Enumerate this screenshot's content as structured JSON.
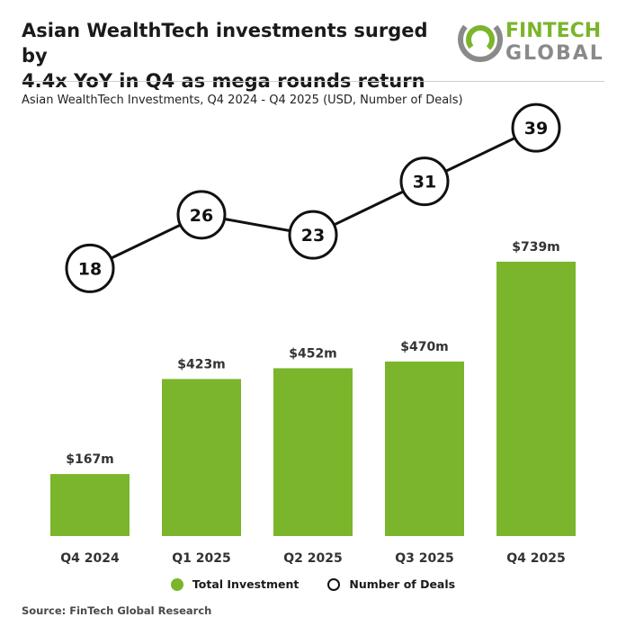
{
  "header": {
    "title_line1": "Asian WealthTech investments surged by",
    "title_line2": "4.4x YoY in Q4 as mega rounds return",
    "logo_line1": "FINTECH",
    "logo_line2": "GLOBAL"
  },
  "subtitle": "Asian WealthTech Investments, Q4 2024 - Q4 2025 (USD, Number of Deals)",
  "legend": {
    "investment": "Total Investment",
    "deals": "Number of Deals"
  },
  "source": "Source: FinTech Global Research",
  "colors": {
    "bar": "#7bb52c",
    "logo_green": "#7bb52c",
    "logo_grey": "#8a8a8a",
    "line": "#111111"
  },
  "chart_data": {
    "type": "bar",
    "categories": [
      "Q4 2024",
      "Q1 2025",
      "Q2 2025",
      "Q3 2025",
      "Q4 2025"
    ],
    "series": [
      {
        "name": "Total Investment",
        "type": "bar",
        "values": [
          167,
          423,
          452,
          470,
          739
        ],
        "labels": [
          "$167m",
          "$423m",
          "$452m",
          "$470m",
          "$739m"
        ]
      },
      {
        "name": "Number of Deals",
        "type": "line",
        "values": [
          18,
          26,
          23,
          31,
          39
        ],
        "labels": [
          "18",
          "26",
          "23",
          "31",
          "39"
        ]
      }
    ],
    "ylim": [
      0,
      800
    ],
    "grid": false,
    "legend": "bottom-center"
  }
}
